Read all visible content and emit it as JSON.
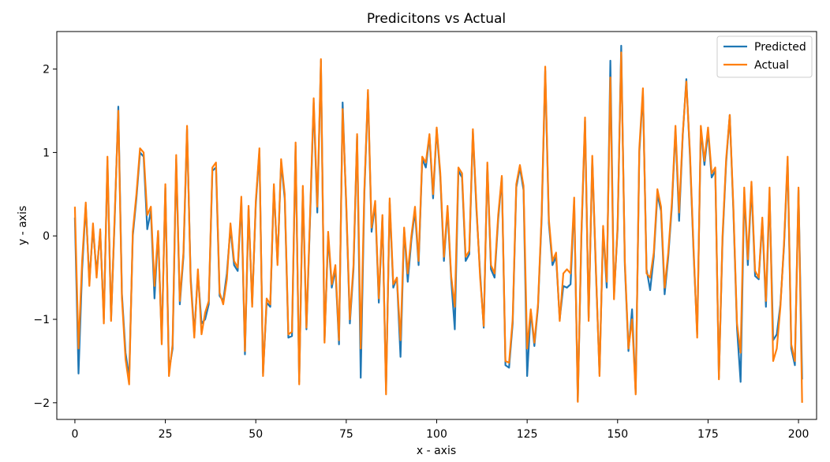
{
  "chart_data": {
    "type": "line",
    "title": "Predicitons vs Actual",
    "xlabel": "x - axis",
    "ylabel": "y - axis",
    "xlim": [
      -5,
      205
    ],
    "ylim": [
      -2.2,
      2.45
    ],
    "xticks": [
      0,
      25,
      50,
      75,
      100,
      125,
      150,
      175,
      200
    ],
    "yticks": [
      -2,
      -1,
      0,
      1,
      2
    ],
    "xtick_labels": [
      "0",
      "25",
      "50",
      "75",
      "100",
      "125",
      "150",
      "175",
      "200"
    ],
    "ytick_labels": [
      "−2",
      "−1",
      "0",
      "1",
      "2"
    ],
    "grid": false,
    "legend": "top-right",
    "series": [
      {
        "name": "Predicted",
        "color": "#1f77b4",
        "values": [
          0.22,
          -1.65,
          -0.4,
          0.37,
          -0.55,
          0.1,
          -0.45,
          0.05,
          -1.0,
          0.9,
          -1.0,
          0.2,
          1.55,
          -0.7,
          -1.4,
          -1.7,
          0.0,
          0.45,
          1.0,
          0.95,
          0.08,
          0.3,
          -0.75,
          0.05,
          -1.25,
          0.58,
          -1.62,
          -1.35,
          0.92,
          -0.82,
          -0.25,
          1.28,
          -0.5,
          -1.18,
          -0.45,
          -1.05,
          -1.0,
          -0.82,
          0.78,
          0.82,
          -0.72,
          -0.78,
          -0.45,
          0.1,
          -0.35,
          -0.42,
          0.42,
          -1.42,
          0.32,
          -0.82,
          0.38,
          1.02,
          -1.65,
          -0.8,
          -0.85,
          0.58,
          -0.32,
          0.88,
          0.45,
          -1.22,
          -1.2,
          1.08,
          -1.75,
          0.55,
          -1.12,
          0.2,
          1.6,
          0.28,
          2.1,
          -1.25,
          0.0,
          -0.62,
          -0.4,
          -1.3,
          1.6,
          0.35,
          -1.05,
          -0.4,
          1.2,
          -1.7,
          0.5,
          1.72,
          0.05,
          0.38,
          -0.8,
          0.22,
          -1.85,
          0.4,
          -0.62,
          -0.5,
          -1.45,
          0.08,
          -0.55,
          -0.05,
          0.3,
          -0.35,
          0.92,
          0.82,
          1.2,
          0.45,
          1.28,
          0.7,
          -0.3,
          0.32,
          -0.52,
          -1.12,
          0.78,
          0.7,
          -0.3,
          -0.22,
          1.25,
          0.3,
          -0.45,
          -1.1,
          0.85,
          -0.4,
          -0.5,
          0.2,
          0.7,
          -1.55,
          -1.58,
          -1.05,
          0.58,
          0.82,
          0.55,
          -1.68,
          -0.9,
          -1.32,
          -0.85,
          0.2,
          1.98,
          0.15,
          -0.35,
          -0.25,
          -1.0,
          -0.6,
          -0.62,
          -0.58,
          0.42,
          -1.98,
          0.0,
          1.38,
          -0.98,
          0.92,
          -0.42,
          -1.65,
          0.08,
          -0.62,
          2.1,
          -0.72,
          0.08,
          2.28,
          -0.35,
          -1.38,
          -0.88,
          -1.88,
          1.0,
          1.72,
          -0.4,
          -0.65,
          -0.25,
          0.5,
          0.3,
          -0.7,
          -0.25,
          0.35,
          1.28,
          0.18,
          1.2,
          1.88,
          0.95,
          -0.2,
          -1.18,
          1.28,
          0.85,
          1.25,
          0.7,
          0.78,
          -1.7,
          -0.05,
          0.88,
          1.45,
          0.3,
          -1.1,
          -1.75,
          0.52,
          -0.35,
          0.6,
          -0.48,
          -0.52,
          0.18,
          -0.85,
          0.5,
          -1.25,
          -1.18,
          -0.82,
          -0.12,
          0.9,
          -1.35,
          -1.55,
          0.55,
          -1.72
        ]
      },
      {
        "name": "Actual",
        "color": "#ff7f0e",
        "values": [
          0.35,
          -1.35,
          -0.3,
          0.4,
          -0.6,
          0.15,
          -0.5,
          0.08,
          -1.05,
          0.95,
          -1.02,
          0.25,
          1.5,
          -0.75,
          -1.48,
          -1.78,
          0.05,
          0.5,
          1.05,
          1.0,
          0.25,
          0.35,
          -0.6,
          0.06,
          -1.3,
          0.62,
          -1.68,
          -1.3,
          0.97,
          -0.78,
          -0.2,
          1.32,
          -0.55,
          -1.22,
          -0.4,
          -1.18,
          -0.92,
          -0.78,
          0.82,
          0.88,
          -0.68,
          -0.82,
          -0.52,
          0.15,
          -0.3,
          -0.38,
          0.47,
          -1.38,
          0.36,
          -0.85,
          0.42,
          1.05,
          -1.68,
          -0.75,
          -0.82,
          0.62,
          -0.35,
          0.92,
          0.5,
          -1.18,
          -1.15,
          1.12,
          -1.78,
          0.6,
          -1.1,
          0.25,
          1.65,
          0.35,
          2.12,
          -1.28,
          0.05,
          -0.58,
          -0.35,
          -1.25,
          1.52,
          0.4,
          -1.0,
          -0.35,
          1.22,
          -1.35,
          0.55,
          1.75,
          0.1,
          0.42,
          -0.75,
          0.25,
          -1.9,
          0.45,
          -0.58,
          -0.5,
          -1.25,
          0.1,
          -0.45,
          0.0,
          0.35,
          -0.3,
          0.95,
          0.88,
          1.22,
          0.5,
          1.3,
          0.75,
          -0.25,
          0.36,
          -0.48,
          -0.85,
          0.82,
          0.75,
          -0.25,
          -0.18,
          1.28,
          0.35,
          -0.5,
          -1.08,
          0.88,
          -0.35,
          -0.45,
          0.25,
          0.72,
          -1.5,
          -1.52,
          -1.0,
          0.62,
          0.85,
          0.6,
          -1.35,
          -0.88,
          -1.28,
          -0.82,
          0.25,
          2.03,
          0.2,
          -0.3,
          -0.2,
          -1.02,
          -0.45,
          -0.4,
          -0.45,
          0.46,
          -1.99,
          0.05,
          1.42,
          -1.02,
          0.96,
          -0.38,
          -1.68,
          0.12,
          -0.55,
          1.9,
          -0.76,
          0.12,
          2.2,
          -0.3,
          -1.35,
          -1.0,
          -1.9,
          1.05,
          1.77,
          -0.45,
          -0.5,
          -0.2,
          0.56,
          0.35,
          -0.62,
          -0.2,
          0.4,
          1.32,
          0.28,
          1.22,
          1.85,
          1.0,
          -0.15,
          -1.22,
          1.32,
          0.9,
          1.3,
          0.75,
          0.82,
          -1.72,
          0.0,
          0.92,
          1.45,
          0.35,
          -1.05,
          -1.4,
          0.58,
          -0.28,
          0.65,
          -0.42,
          -0.5,
          0.22,
          -0.78,
          0.58,
          -1.5,
          -1.35,
          -0.85,
          -0.08,
          0.95,
          -1.3,
          -1.5,
          0.58,
          -2.0
        ]
      }
    ]
  }
}
